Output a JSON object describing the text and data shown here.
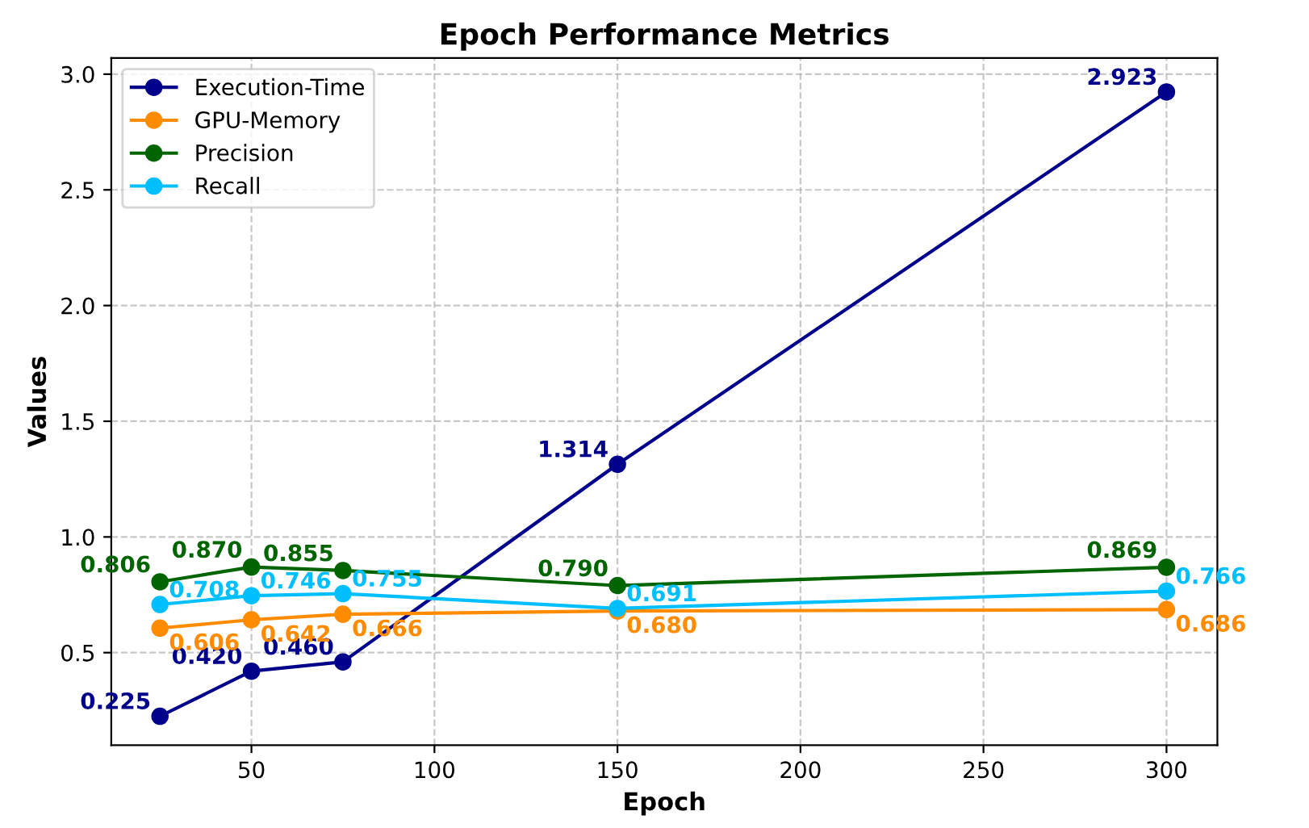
{
  "chart_data": {
    "type": "line",
    "title": "Epoch Performance Metrics",
    "xlabel": "Epoch",
    "ylabel": "Values",
    "x": [
      25,
      50,
      75,
      150,
      300
    ],
    "series": [
      {
        "name": "Execution-Time",
        "color": "#00008b",
        "values": [
          0.225,
          0.42,
          0.46,
          1.314,
          2.923
        ],
        "value_labels": [
          "0.225",
          "0.420",
          "0.460",
          "1.314",
          "2.923"
        ]
      },
      {
        "name": "GPU-Memory",
        "color": "#ff8c00",
        "values": [
          0.606,
          0.642,
          0.666,
          0.68,
          0.686
        ],
        "value_labels": [
          "0.606",
          "0.642",
          "0.666",
          "0.680",
          "0.686"
        ]
      },
      {
        "name": "Precision",
        "color": "#006400",
        "values": [
          0.806,
          0.87,
          0.855,
          0.79,
          0.869
        ],
        "value_labels": [
          "0.806",
          "0.870",
          "0.855",
          "0.790",
          "0.869"
        ]
      },
      {
        "name": "Recall",
        "color": "#00bfff",
        "values": [
          0.708,
          0.746,
          0.755,
          0.691,
          0.766
        ],
        "value_labels": [
          "0.708",
          "0.746",
          "0.755",
          "0.691",
          "0.766"
        ]
      }
    ],
    "xlim": [
      11.7,
      313.9
    ],
    "ylim": [
      0.1,
      3.07
    ],
    "xticks": [
      50,
      100,
      150,
      200,
      250,
      300
    ],
    "yticks": [
      0.5,
      {
        "value": 1,
        "label": "1.0"
      },
      1.5,
      {
        "value": 2,
        "label": "2.0"
      },
      2.5,
      {
        "value": 3,
        "label": "3.0"
      }
    ],
    "grid": true,
    "legend": "top left",
    "marker": "circle",
    "line_style": "solid"
  }
}
